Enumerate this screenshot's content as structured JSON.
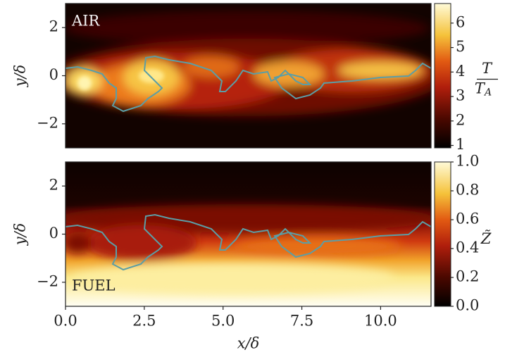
{
  "chart_data": [
    {
      "type": "heatmap",
      "annotation": "AIR",
      "ylabel": "y/δ",
      "xlim": [
        0,
        11.6
      ],
      "ylim": [
        -3,
        3
      ],
      "yticks": [
        {
          "value": -2,
          "label": "−2"
        },
        0,
        2
      ],
      "colorbar": {
        "label_numerator": "T",
        "label_denominator": "T",
        "label_denominator_subscript": "A",
        "lim": [
          0.9,
          6.8
        ],
        "ticks": [
          1,
          2,
          3,
          4,
          5,
          6
        ]
      }
    },
    {
      "type": "heatmap",
      "annotation": "FUEL",
      "ylabel": "y/δ",
      "xlabel": "x/δ",
      "xlim": [
        0,
        11.6
      ],
      "ylim": [
        -3,
        3
      ],
      "xticks": [
        {
          "value": 0,
          "label": "0.0"
        },
        {
          "value": 2.5,
          "label": "2.5"
        },
        {
          "value": 5,
          "label": "5.0"
        },
        {
          "value": 7.5,
          "label": "7.5"
        },
        {
          "value": 10,
          "label": "10.0"
        }
      ],
      "yticks": [
        {
          "value": -2,
          "label": "−2"
        },
        0,
        2
      ],
      "colorbar": {
        "label": "Z̃",
        "lim": [
          0,
          1
        ],
        "ticks": [
          {
            "value": 0,
            "label": "0.0"
          },
          {
            "value": 0.2,
            "label": "0.2"
          },
          {
            "value": 0.4,
            "label": "0.4"
          },
          {
            "value": 0.6,
            "label": "0.6"
          },
          {
            "value": 0.8,
            "label": "0.8"
          },
          {
            "value": 1,
            "label": "1.0"
          }
        ]
      }
    }
  ]
}
